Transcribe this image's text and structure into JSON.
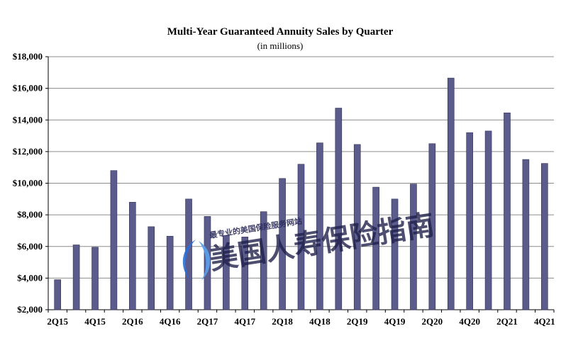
{
  "chart_data": {
    "type": "bar",
    "title": "Multi-Year Guaranteed Annuity Sales by Quarter",
    "subtitle": "(in millions)",
    "xlabel": "",
    "ylabel": "",
    "ylim": [
      2000,
      18000
    ],
    "ytick_labels": [
      "$2,000",
      "$4,000",
      "$6,000",
      "$8,000",
      "$10,000",
      "$12,000",
      "$14,000",
      "$16,000",
      "$18,000"
    ],
    "ytick_values": [
      2000,
      4000,
      6000,
      8000,
      10000,
      12000,
      14000,
      16000,
      18000
    ],
    "categories": [
      "2Q15",
      "3Q15",
      "4Q15",
      "1Q16",
      "2Q16",
      "3Q16",
      "4Q16",
      "1Q17",
      "2Q17",
      "3Q17",
      "4Q17",
      "1Q18",
      "2Q18",
      "3Q18",
      "4Q18",
      "1Q19",
      "2Q19",
      "3Q19",
      "4Q19",
      "1Q20",
      "2Q20",
      "3Q20",
      "4Q20",
      "1Q21",
      "2Q21",
      "3Q21",
      "4Q21"
    ],
    "xtick_labels_shown": [
      "2Q15",
      "",
      "4Q15",
      "",
      "2Q16",
      "",
      "4Q16",
      "",
      "2Q17",
      "",
      "4Q17",
      "",
      "2Q18",
      "",
      "4Q18",
      "",
      "2Q19",
      "",
      "4Q19",
      "",
      "2Q20",
      "",
      "4Q20",
      "",
      "2Q21",
      "",
      "4Q21"
    ],
    "values": [
      3900,
      6100,
      5950,
      10800,
      8800,
      7250,
      6650,
      9000,
      7900,
      6700,
      6600,
      8200,
      10300,
      11200,
      12550,
      14750,
      12450,
      9750,
      9000,
      9950,
      12500,
      16650,
      13200,
      13300,
      14450,
      11500,
      11250
    ],
    "grid": true,
    "bar_color": "#5b5b8c"
  },
  "watermark": {
    "top_line": "最专业的美国保险服务网站",
    "main_text": "美国人寿保险指南"
  }
}
